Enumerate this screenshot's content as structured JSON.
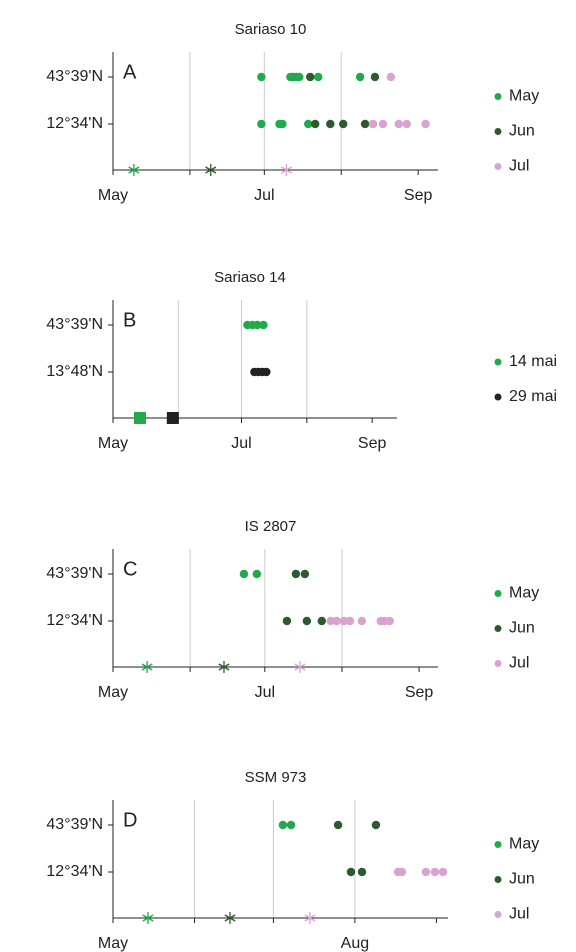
{
  "chart_data": [
    {
      "type": "scatter",
      "title": "Sariaso 10",
      "panel": "A",
      "categories": [
        "43°39'N",
        "12°34'N"
      ],
      "xlim": [
        121,
        252
      ],
      "xticks": [
        {
          "value": 121,
          "label": "May"
        },
        {
          "value": 182,
          "label": "Jul"
        },
        {
          "value": 244,
          "label": "Sep"
        }
      ],
      "xminor": [
        152,
        213
      ],
      "xgrid": [
        152,
        182,
        213
      ],
      "sowing_marker": "asterisk",
      "series": [
        {
          "name": "May",
          "color": "#22a94a",
          "sowing": 129.4,
          "x": [
            180.8,
            192.5,
            193.7,
            194.9,
            196.1,
            203.7,
            220.6,
            180.8,
            188.1,
            189.3,
            199.7
          ],
          "y": [
            0,
            0,
            0,
            0,
            0,
            0,
            0,
            1,
            1,
            1,
            1
          ]
        },
        {
          "name": "Jun",
          "color": "#2f5a2f",
          "sowing": 160.4,
          "x": [
            200.5,
            226.6,
            202.5,
            208.6,
            213.8,
            222.6
          ],
          "y": [
            0,
            0,
            1,
            1,
            1,
            1
          ]
        },
        {
          "name": "Jul",
          "color": "#d9a3d0",
          "sowing": 190.9,
          "x": [
            233.0,
            225.8,
            229.8,
            236.2,
            239.4,
            247.0
          ],
          "y": [
            0,
            1,
            1,
            1,
            1,
            1
          ]
        }
      ]
    },
    {
      "type": "scatter",
      "title": "Sariaso 14",
      "panel": "B",
      "categories": [
        "43°39'N",
        "13°48'N"
      ],
      "xlim": [
        121,
        255.8
      ],
      "xticks": [
        {
          "value": 121,
          "label": "May"
        },
        {
          "value": 182,
          "label": "Jul"
        },
        {
          "value": 244,
          "label": "Sep"
        }
      ],
      "xminor": [
        152,
        213
      ],
      "xgrid": [
        152,
        182,
        213
      ],
      "sowing_marker": "square",
      "series": [
        {
          "name": "14 mai",
          "color": "#22a94a",
          "sowing": 133.8,
          "x": [
            184.8,
            187.2,
            189.5,
            192.4
          ],
          "y": [
            0,
            0,
            0,
            0
          ]
        },
        {
          "name": "29 mai",
          "color": "#222222",
          "sowing": 149.4,
          "x": [
            188.1,
            190.0,
            191.9,
            193.8
          ],
          "y": [
            1,
            1,
            1,
            1
          ]
        }
      ]
    },
    {
      "type": "scatter",
      "title": "IS 2807",
      "panel": "C",
      "categories": [
        "43°39'N",
        "12°34'N"
      ],
      "xlim": [
        121,
        251.6
      ],
      "xticks": [
        {
          "value": 121,
          "label": "May"
        },
        {
          "value": 182,
          "label": "Jul"
        },
        {
          "value": 244,
          "label": "Sep"
        }
      ],
      "xminor": [
        152,
        213
      ],
      "xgrid": [
        152,
        182,
        213
      ],
      "sowing_marker": "asterisk",
      "series": [
        {
          "name": "May",
          "color": "#22a94a",
          "sowing": 134.7,
          "x": [
            173.6,
            178.8
          ],
          "y": [
            0,
            0
          ]
        },
        {
          "name": "Jun",
          "color": "#2f5a2f",
          "sowing": 165.6,
          "x": [
            194.5,
            198.1,
            190.9,
            198.9,
            204.9
          ],
          "y": [
            0,
            0,
            1,
            1,
            1
          ]
        },
        {
          "name": "Jul",
          "color": "#d9a3d0",
          "sowing": 196.1,
          "x": [
            208.5,
            210.9,
            213.8,
            216.2,
            221.0,
            228.6,
            230.2,
            232.2
          ],
          "y": [
            1,
            1,
            1,
            1,
            1,
            1,
            1,
            1
          ]
        }
      ]
    },
    {
      "type": "scatter",
      "title": "SSM 973",
      "panel": "D",
      "categories": [
        "43°39'N",
        "12°34'N"
      ],
      "xlim": [
        121,
        248.4
      ],
      "xticks": [
        {
          "value": 121,
          "label": "May"
        },
        {
          "value": 213,
          "label": "Aug"
        }
      ],
      "xminor": [
        152,
        182,
        244
      ],
      "xgrid": [
        152,
        182,
        213
      ],
      "sowing_marker": "asterisk",
      "series": [
        {
          "name": "May",
          "color": "#22a94a",
          "sowing": 134.3,
          "x": [
            185.6,
            188.7
          ],
          "y": [
            0,
            0
          ]
        },
        {
          "name": "Jun",
          "color": "#2f5a2f",
          "sowing": 165.5,
          "x": [
            206.6,
            221.0,
            211.5,
            215.7
          ],
          "y": [
            0,
            0,
            1,
            1
          ]
        },
        {
          "name": "Jul",
          "color": "#d9a3d0",
          "sowing": 195.9,
          "x": [
            229.4,
            230.9,
            240.0,
            243.4,
            246.5
          ],
          "y": [
            1,
            1,
            1,
            1,
            1
          ]
        }
      ]
    }
  ]
}
